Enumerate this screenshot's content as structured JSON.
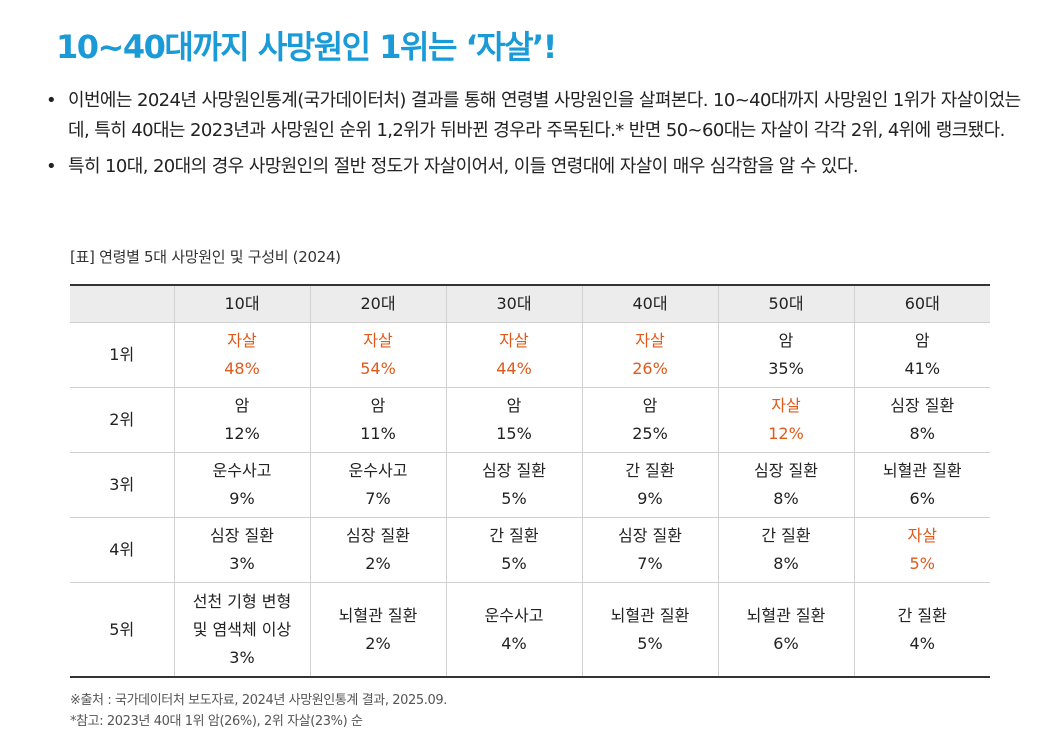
{
  "title": "10~40대까지 사망원인 1위는 ‘자살’!",
  "bullets": [
    "이번에는 2024년 사망원인통계(국가데이터처) 결과를 통해 연령별 사망원인을 살펴본다. 10~40대까지 사망원인 1위가 자살이었는데, 특히 40대는 2023년과 사망원인 순위 1,2위가 뒤바뀐 경우라 주목된다.* 반면 50~60대는 자살이 각각 2위, 4위에 랭크됐다.",
    "특히 10대, 20대의 경우 사망원인의 절반 정도가 자살이어서, 이들 연령대에 자살이 매우 심각함을 알 수 있다."
  ],
  "table": {
    "caption": "[표] 연령별 5대 사망원인 및 구성비 (2024)",
    "highlight_color": "#e05a1c",
    "headers": [
      "",
      "10대",
      "20대",
      "30대",
      "40대",
      "50대",
      "60대"
    ],
    "rows": [
      {
        "rank": "1위",
        "cells": [
          {
            "cause": "자살",
            "pct": "48%",
            "highlight": true
          },
          {
            "cause": "자살",
            "pct": "54%",
            "highlight": true
          },
          {
            "cause": "자살",
            "pct": "44%",
            "highlight": true
          },
          {
            "cause": "자살",
            "pct": "26%",
            "highlight": true
          },
          {
            "cause": "암",
            "pct": "35%",
            "highlight": false
          },
          {
            "cause": "암",
            "pct": "41%",
            "highlight": false
          }
        ]
      },
      {
        "rank": "2위",
        "cells": [
          {
            "cause": "암",
            "pct": "12%",
            "highlight": false
          },
          {
            "cause": "암",
            "pct": "11%",
            "highlight": false
          },
          {
            "cause": "암",
            "pct": "15%",
            "highlight": false
          },
          {
            "cause": "암",
            "pct": "25%",
            "highlight": false
          },
          {
            "cause": "자살",
            "pct": "12%",
            "highlight": true
          },
          {
            "cause": "심장 질환",
            "pct": "8%",
            "highlight": false
          }
        ]
      },
      {
        "rank": "3위",
        "cells": [
          {
            "cause": "운수사고",
            "pct": "9%",
            "highlight": false
          },
          {
            "cause": "운수사고",
            "pct": "7%",
            "highlight": false
          },
          {
            "cause": "심장 질환",
            "pct": "5%",
            "highlight": false
          },
          {
            "cause": "간 질환",
            "pct": "9%",
            "highlight": false
          },
          {
            "cause": "심장 질환",
            "pct": "8%",
            "highlight": false
          },
          {
            "cause": "뇌혈관 질환",
            "pct": "6%",
            "highlight": false
          }
        ]
      },
      {
        "rank": "4위",
        "cells": [
          {
            "cause": "심장 질환",
            "pct": "3%",
            "highlight": false
          },
          {
            "cause": "심장 질환",
            "pct": "2%",
            "highlight": false
          },
          {
            "cause": "간 질환",
            "pct": "5%",
            "highlight": false
          },
          {
            "cause": "심장 질환",
            "pct": "7%",
            "highlight": false
          },
          {
            "cause": "간 질환",
            "pct": "8%",
            "highlight": false
          },
          {
            "cause": "자살",
            "pct": "5%",
            "highlight": true
          }
        ]
      },
      {
        "rank": "5위",
        "cells": [
          {
            "cause": "선천 기형 변형\n및 염색체 이상",
            "pct": "3%",
            "highlight": false
          },
          {
            "cause": "뇌혈관 질환",
            "pct": "2%",
            "highlight": false
          },
          {
            "cause": "운수사고",
            "pct": "4%",
            "highlight": false
          },
          {
            "cause": "뇌혈관 질환",
            "pct": "5%",
            "highlight": false
          },
          {
            "cause": "뇌혈관 질환",
            "pct": "6%",
            "highlight": false
          },
          {
            "cause": "간 질환",
            "pct": "4%",
            "highlight": false
          }
        ]
      }
    ]
  },
  "footnotes": [
    "※출처 : 국가데이터처 보도자료, 2024년 사망원인통계 결과, 2025.09.",
    "*참고: 2023년 40대 1위 암(26%), 2위 자살(23%) 순"
  ]
}
